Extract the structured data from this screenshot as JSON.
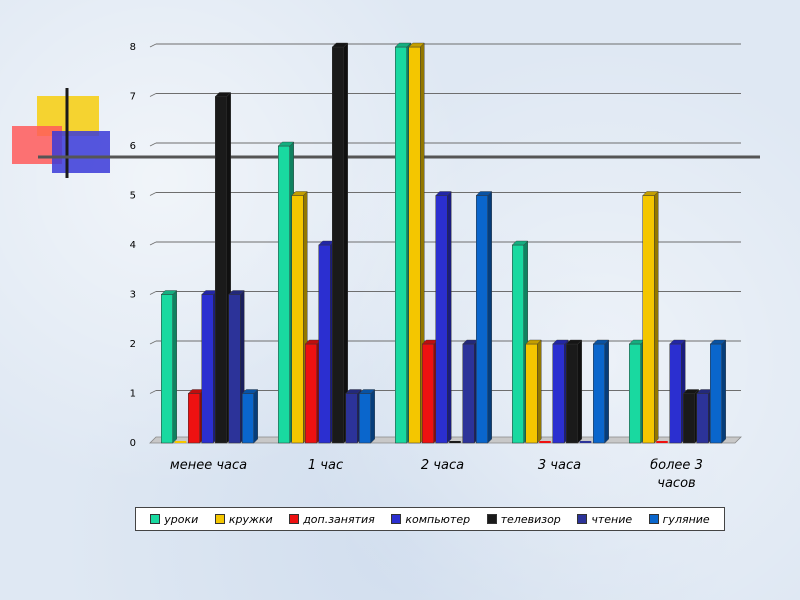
{
  "chart_data": {
    "type": "bar",
    "title": "",
    "xlabel": "",
    "ylabel": "",
    "ylim": [
      0,
      8
    ],
    "yticks": [
      "0",
      "1",
      "2",
      "3",
      "4",
      "5",
      "6",
      "7",
      "8"
    ],
    "grid": true,
    "legend_position": "bottom",
    "categories": [
      "менее часа",
      "1 час",
      "2 часа",
      "3 часа",
      "более 3 часов"
    ],
    "series": [
      {
        "name": "уроки",
        "color": "#19d9a0",
        "values": [
          3,
          6,
          8,
          4,
          2
        ]
      },
      {
        "name": "кружки",
        "color": "#f4c600",
        "values": [
          0,
          5,
          8,
          2,
          5
        ]
      },
      {
        "name": "доп.занятия",
        "color": "#ee1111",
        "values": [
          1,
          2,
          2,
          0,
          0
        ]
      },
      {
        "name": "компьютер",
        "color": "#2b2fd0",
        "values": [
          3,
          4,
          5,
          2,
          2
        ]
      },
      {
        "name": "телевизор",
        "color": "#1a1a1a",
        "values": [
          7,
          8,
          0,
          2,
          1
        ]
      },
      {
        "name": "чтение",
        "color": "#2c3399",
        "values": [
          3,
          1,
          2,
          0,
          1
        ]
      },
      {
        "name": "гуляние",
        "color": "#0a66cc",
        "values": [
          1,
          1,
          5,
          2,
          2
        ]
      }
    ]
  }
}
